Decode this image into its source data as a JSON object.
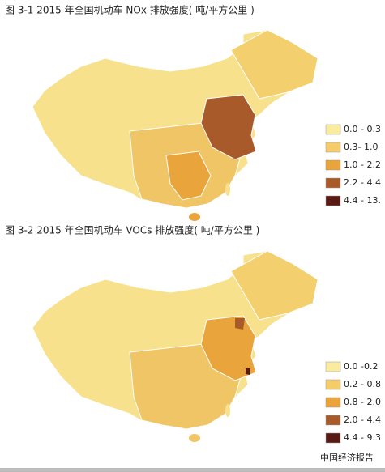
{
  "maps": [
    {
      "title": "图 3-1  2015 年全国机动车 NOx 排放强度( 吨/平方公里 )",
      "legend": [
        {
          "label": "0.0 - 0.3",
          "color": "#f9ec9e"
        },
        {
          "label": "0.3- 1.0",
          "color": "#f4cd6a"
        },
        {
          "label": "1.0 - 2.2",
          "color": "#e9a43c"
        },
        {
          "label": "2.2 - 4.4",
          "color": "#a85a2a"
        },
        {
          "label": "4.4 - 13.",
          "color": "#5a1a14"
        }
      ]
    },
    {
      "title": "图 3-2   2015 年全国机动车 VOCs 排放强度( 吨/平方公里 )",
      "legend": [
        {
          "label": "0.0 -0.2",
          "color": "#f9ec9e"
        },
        {
          "label": "0.2 - 0.8",
          "color": "#f4cd6a"
        },
        {
          "label": "0.8 - 2.0",
          "color": "#e9a43c"
        },
        {
          "label": "2.0 - 4.4",
          "color": "#a85a2a"
        },
        {
          "label": "4.4 - 9.3",
          "color": "#5a1a14"
        }
      ]
    }
  ],
  "watermark": "中国经济报告"
}
